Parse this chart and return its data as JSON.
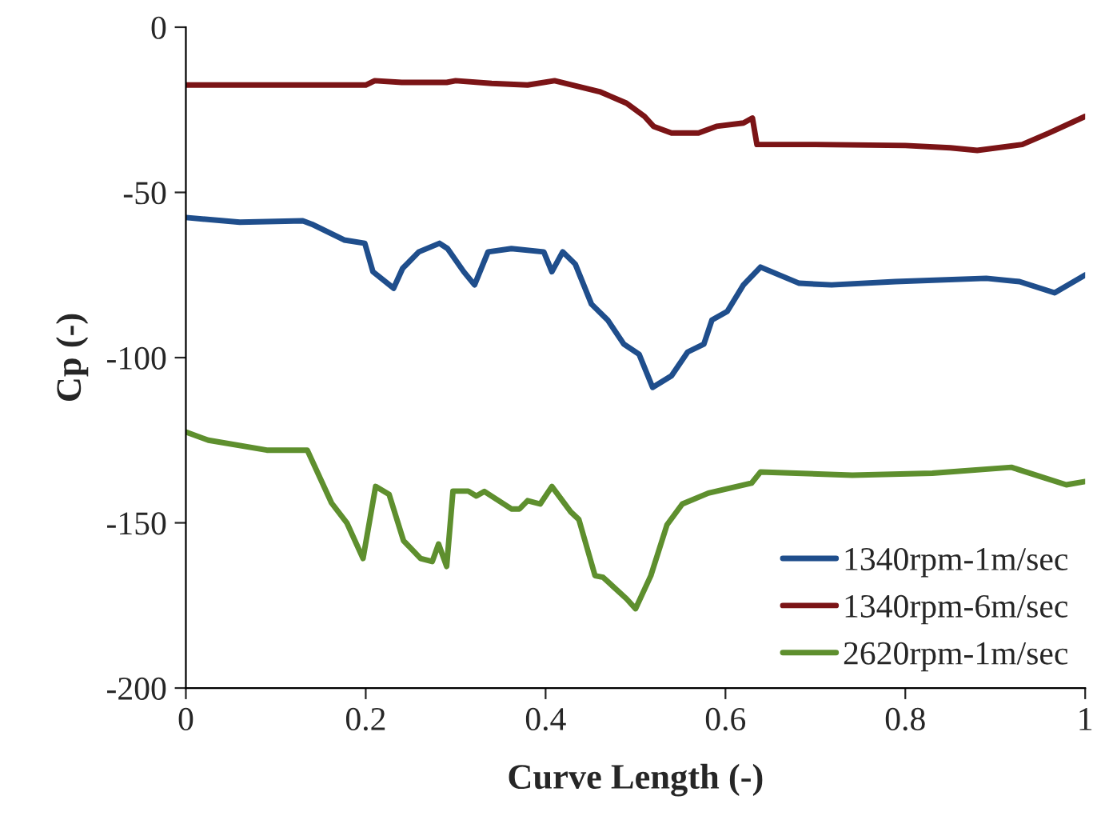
{
  "chart_data": {
    "type": "line",
    "xlabel": "Curve Length (-)",
    "ylabel": "Cp (-)",
    "xlim": [
      0,
      1
    ],
    "ylim": [
      -200,
      0
    ],
    "xticks": [
      0,
      {
        "value": 0.2,
        "label": "0.2"
      },
      {
        "value": 0.4,
        "label": "0.4"
      },
      {
        "value": 0.6,
        "label": "0.6"
      },
      {
        "value": 0.8,
        "label": "0.8"
      },
      1
    ],
    "yticks": [
      -200,
      -150,
      -100,
      -50,
      0
    ],
    "grid": false,
    "legend": "bottom right",
    "marker": "none",
    "line_style": "solid",
    "series": [
      {
        "name": "1340rpm-1m/sec",
        "color": "#1f4e8c",
        "x": [
          0,
          0.06,
          0.13,
          0.14,
          0.176,
          0.199,
          0.208,
          0.231,
          0.241,
          0.259,
          0.282,
          0.291,
          0.309,
          0.321,
          0.336,
          0.362,
          0.398,
          0.407,
          0.419,
          0.433,
          0.451,
          0.469,
          0.487,
          0.504,
          0.519,
          0.54,
          0.558,
          0.576,
          0.585,
          0.602,
          0.62,
          0.639,
          0.682,
          0.718,
          0.789,
          0.89,
          0.927,
          0.966,
          1
        ],
        "values": [
          -57.6,
          -59,
          -58.6,
          -59.6,
          -64.4,
          -65.4,
          -74,
          -79,
          -73,
          -68,
          -65.4,
          -67,
          -74,
          -78,
          -68,
          -67,
          -68,
          -74,
          -68,
          -71.7,
          -83.8,
          -88.6,
          -95.9,
          -99,
          -109,
          -105.5,
          -98.3,
          -95.9,
          -88.6,
          -86,
          -78,
          -72.6,
          -77.5,
          -78,
          -77,
          -76,
          -77,
          -80.4,
          -75
        ]
      },
      {
        "name": "1340rpm-6m/sec",
        "color": "#7b1416",
        "x": [
          0,
          0.1,
          0.2,
          0.21,
          0.24,
          0.29,
          0.3,
          0.34,
          0.38,
          0.41,
          0.43,
          0.46,
          0.49,
          0.51,
          0.52,
          0.54,
          0.57,
          0.59,
          0.62,
          0.63,
          0.635,
          0.7,
          0.8,
          0.85,
          0.88,
          0.93,
          0.96,
          1
        ],
        "values": [
          -17.5,
          -17.5,
          -17.5,
          -16.2,
          -16.7,
          -16.7,
          -16.2,
          -17,
          -17.5,
          -16.2,
          -17.5,
          -19.5,
          -23,
          -27,
          -30,
          -32,
          -32,
          -30,
          -29,
          -27.5,
          -35.5,
          -35.5,
          -35.8,
          -36.5,
          -37.3,
          -35.5,
          -32,
          -27
        ]
      },
      {
        "name": "2620rpm-1m/sec",
        "color": "#5e8f2e",
        "x": [
          0,
          0.025,
          0.09,
          0.135,
          0.162,
          0.179,
          0.197,
          0.211,
          0.226,
          0.242,
          0.261,
          0.274,
          0.281,
          0.29,
          0.297,
          0.314,
          0.323,
          0.332,
          0.362,
          0.371,
          0.38,
          0.394,
          0.407,
          0.428,
          0.437,
          0.455,
          0.464,
          0.49,
          0.5,
          0.517,
          0.535,
          0.552,
          0.581,
          0.629,
          0.639,
          0.741,
          0.83,
          0.918,
          0.979,
          1
        ],
        "values": [
          -122.5,
          -125,
          -128,
          -128,
          -144,
          -150,
          -160.8,
          -139,
          -141.4,
          -155.4,
          -160.8,
          -161.7,
          -156.4,
          -163.2,
          -140.4,
          -140.4,
          -141.9,
          -140.5,
          -145.8,
          -145.8,
          -143.3,
          -144.3,
          -139,
          -146.7,
          -149,
          -166,
          -166.5,
          -173,
          -176,
          -166,
          -150.6,
          -144.3,
          -141,
          -138,
          -134.6,
          -135.6,
          -135,
          -133.2,
          -138.5,
          -137.5
        ]
      }
    ]
  }
}
